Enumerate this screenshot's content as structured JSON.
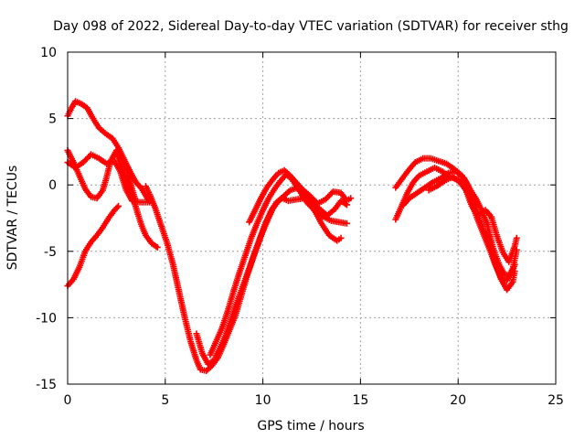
{
  "chart_data": {
    "type": "scatter",
    "title": "Day 098 of 2022, Sidereal Day-to-day VTEC variation (SDTVAR) for receiver sthg",
    "xlabel": "GPS time / hours",
    "ylabel": "SDTVAR / TECUs",
    "xlim": [
      0,
      25
    ],
    "ylim": [
      -15,
      10
    ],
    "xticks": [
      0,
      5,
      10,
      15,
      20,
      25
    ],
    "yticks": [
      -15,
      -10,
      -5,
      0,
      5,
      10
    ],
    "grid": true,
    "marker": "plus",
    "color": "#ff0000",
    "series": [
      {
        "name": "track-1",
        "points": [
          [
            0.0,
            5.2
          ],
          [
            0.2,
            5.8
          ],
          [
            0.4,
            6.3
          ],
          [
            0.7,
            6.1
          ],
          [
            1.0,
            5.8
          ],
          [
            1.3,
            5.0
          ],
          [
            1.6,
            4.3
          ],
          [
            2.0,
            3.8
          ],
          [
            2.3,
            3.5
          ],
          [
            2.6,
            2.8
          ],
          [
            2.9,
            1.9
          ],
          [
            3.2,
            1.0
          ],
          [
            3.5,
            0.2
          ],
          [
            3.8,
            -0.3
          ],
          [
            4.0,
            -0.8
          ],
          [
            4.2,
            -1.3
          ]
        ]
      },
      {
        "name": "track-2",
        "points": [
          [
            0.0,
            2.6
          ],
          [
            0.3,
            1.7
          ],
          [
            0.6,
            0.7
          ],
          [
            0.9,
            -0.3
          ],
          [
            1.2,
            -0.9
          ],
          [
            1.5,
            -1.0
          ],
          [
            1.8,
            -0.4
          ],
          [
            2.0,
            0.6
          ],
          [
            2.2,
            1.8
          ],
          [
            2.5,
            2.6
          ],
          [
            2.8,
            2.0
          ],
          [
            3.1,
            0.8
          ],
          [
            3.3,
            -0.3
          ],
          [
            3.5,
            -1.3
          ]
        ]
      },
      {
        "name": "track-3",
        "points": [
          [
            0.0,
            1.7
          ],
          [
            0.4,
            1.3
          ],
          [
            0.8,
            1.7
          ],
          [
            1.2,
            2.3
          ],
          [
            1.6,
            2.0
          ],
          [
            2.0,
            1.6
          ],
          [
            2.4,
            1.8
          ],
          [
            2.7,
            1.0
          ],
          [
            3.0,
            -0.4
          ],
          [
            3.3,
            -1.2
          ],
          [
            3.7,
            -1.3
          ],
          [
            4.1,
            -1.3
          ]
        ]
      },
      {
        "name": "track-4",
        "points": [
          [
            0.0,
            -7.6
          ],
          [
            0.3,
            -7.1
          ],
          [
            0.6,
            -6.2
          ],
          [
            0.9,
            -5.0
          ],
          [
            1.2,
            -4.3
          ],
          [
            1.5,
            -3.8
          ],
          [
            1.8,
            -3.2
          ],
          [
            2.1,
            -2.5
          ],
          [
            2.4,
            -1.9
          ],
          [
            2.6,
            -1.6
          ]
        ]
      },
      {
        "name": "track-5",
        "points": [
          [
            2.5,
            2.4
          ],
          [
            2.8,
            1.2
          ],
          [
            3.1,
            -0.1
          ],
          [
            3.4,
            -1.2
          ],
          [
            3.6,
            -2.2
          ],
          [
            3.8,
            -3.1
          ],
          [
            4.0,
            -3.8
          ],
          [
            4.3,
            -4.4
          ],
          [
            4.6,
            -4.7
          ]
        ]
      },
      {
        "name": "track-6",
        "points": [
          [
            4.0,
            -0.1
          ],
          [
            4.2,
            -0.7
          ],
          [
            4.5,
            -1.8
          ],
          [
            4.8,
            -3.1
          ],
          [
            5.1,
            -4.4
          ],
          [
            5.4,
            -6.0
          ],
          [
            5.7,
            -8.0
          ],
          [
            6.0,
            -10.0
          ],
          [
            6.3,
            -11.8
          ],
          [
            6.6,
            -13.2
          ],
          [
            6.8,
            -13.9
          ],
          [
            7.1,
            -14.0
          ],
          [
            7.4,
            -13.6
          ],
          [
            7.7,
            -13.0
          ],
          [
            8.0,
            -12.0
          ],
          [
            8.3,
            -10.9
          ],
          [
            8.6,
            -9.8
          ],
          [
            8.9,
            -8.3
          ],
          [
            9.2,
            -6.8
          ],
          [
            9.5,
            -5.5
          ],
          [
            9.8,
            -4.3
          ],
          [
            10.1,
            -3.0
          ],
          [
            10.4,
            -2.0
          ],
          [
            10.7,
            -1.3
          ],
          [
            11.0,
            -1.0
          ],
          [
            11.3,
            -1.2
          ],
          [
            11.7,
            -1.1
          ],
          [
            12.1,
            -1.0
          ],
          [
            12.5,
            -1.3
          ],
          [
            12.9,
            -1.8
          ],
          [
            13.3,
            -2.3
          ],
          [
            13.7,
            -1.8
          ],
          [
            14.0,
            -1.2
          ],
          [
            14.3,
            -1.5
          ]
        ]
      },
      {
        "name": "track-7",
        "points": [
          [
            6.6,
            -11.2
          ],
          [
            6.9,
            -12.7
          ],
          [
            7.2,
            -13.5
          ],
          [
            7.5,
            -13.2
          ],
          [
            7.8,
            -12.3
          ],
          [
            8.1,
            -11.3
          ],
          [
            8.4,
            -10.0
          ],
          [
            8.7,
            -8.7
          ],
          [
            9.0,
            -7.5
          ],
          [
            9.3,
            -6.3
          ],
          [
            9.6,
            -5.0
          ],
          [
            9.9,
            -3.8
          ],
          [
            10.2,
            -2.8
          ],
          [
            10.5,
            -1.8
          ],
          [
            10.8,
            -1.2
          ],
          [
            11.1,
            -0.8
          ],
          [
            11.4,
            -0.4
          ],
          [
            11.8,
            -0.2
          ],
          [
            12.2,
            -0.8
          ],
          [
            12.6,
            -1.8
          ],
          [
            13.0,
            -2.9
          ],
          [
            13.4,
            -3.8
          ],
          [
            13.8,
            -4.2
          ],
          [
            14.0,
            -4.0
          ]
        ]
      },
      {
        "name": "track-8",
        "points": [
          [
            7.3,
            -12.8
          ],
          [
            7.6,
            -11.8
          ],
          [
            7.9,
            -10.8
          ],
          [
            8.2,
            -9.5
          ],
          [
            8.5,
            -8.0
          ],
          [
            8.8,
            -6.6
          ],
          [
            9.1,
            -5.3
          ],
          [
            9.4,
            -4.0
          ],
          [
            9.7,
            -2.9
          ],
          [
            10.0,
            -1.9
          ],
          [
            10.3,
            -1.0
          ],
          [
            10.6,
            -0.3
          ],
          [
            10.9,
            0.3
          ],
          [
            11.2,
            0.8
          ],
          [
            11.5,
            0.4
          ],
          [
            11.9,
            -0.5
          ],
          [
            12.3,
            -1.4
          ],
          [
            12.7,
            -2.0
          ],
          [
            13.1,
            -2.4
          ],
          [
            13.5,
            -2.7
          ],
          [
            13.9,
            -2.8
          ],
          [
            14.3,
            -2.9
          ]
        ]
      },
      {
        "name": "track-9",
        "points": [
          [
            9.3,
            -2.8
          ],
          [
            9.6,
            -1.9
          ],
          [
            9.9,
            -1.0
          ],
          [
            10.2,
            -0.2
          ],
          [
            10.5,
            0.4
          ],
          [
            10.8,
            0.9
          ],
          [
            11.1,
            1.1
          ],
          [
            11.4,
            0.7
          ],
          [
            11.7,
            0.2
          ],
          [
            12.0,
            -0.3
          ],
          [
            12.4,
            -0.8
          ],
          [
            12.8,
            -1.4
          ],
          [
            13.2,
            -1.1
          ],
          [
            13.6,
            -0.5
          ],
          [
            14.0,
            -0.6
          ],
          [
            14.3,
            -1.2
          ],
          [
            14.5,
            -1.0
          ]
        ]
      },
      {
        "name": "track-10",
        "points": [
          [
            16.8,
            -0.2
          ],
          [
            17.1,
            0.4
          ],
          [
            17.4,
            1.0
          ],
          [
            17.8,
            1.7
          ],
          [
            18.2,
            2.0
          ],
          [
            18.6,
            2.0
          ],
          [
            19.0,
            1.8
          ],
          [
            19.4,
            1.6
          ],
          [
            19.8,
            1.2
          ],
          [
            20.2,
            0.7
          ],
          [
            20.5,
            0.0
          ],
          [
            20.7,
            -1.0
          ],
          [
            21.0,
            -2.2
          ],
          [
            21.3,
            -3.4
          ],
          [
            21.6,
            -4.5
          ],
          [
            21.9,
            -5.9
          ],
          [
            22.2,
            -7.1
          ],
          [
            22.5,
            -7.9
          ],
          [
            22.8,
            -7.3
          ],
          [
            22.9,
            -6.5
          ]
        ]
      },
      {
        "name": "track-11",
        "points": [
          [
            16.8,
            -2.6
          ],
          [
            17.1,
            -1.6
          ],
          [
            17.4,
            -0.6
          ],
          [
            17.7,
            0.2
          ],
          [
            18.0,
            0.7
          ],
          [
            18.4,
            1.0
          ],
          [
            18.8,
            1.3
          ],
          [
            19.2,
            1.0
          ],
          [
            19.6,
            0.6
          ],
          [
            20.0,
            0.4
          ],
          [
            20.4,
            -0.3
          ],
          [
            20.7,
            -1.4
          ],
          [
            21.0,
            -2.6
          ],
          [
            21.3,
            -3.7
          ],
          [
            21.6,
            -4.8
          ],
          [
            21.9,
            -6.0
          ],
          [
            22.2,
            -7.0
          ],
          [
            22.5,
            -7.2
          ],
          [
            22.8,
            -6.3
          ],
          [
            23.0,
            -4.9
          ]
        ]
      },
      {
        "name": "track-12",
        "points": [
          [
            17.2,
            -1.5
          ],
          [
            17.5,
            -1.0
          ],
          [
            17.9,
            -0.6
          ],
          [
            18.3,
            -0.2
          ],
          [
            18.7,
            0.2
          ],
          [
            19.1,
            0.5
          ],
          [
            19.5,
            0.9
          ],
          [
            19.9,
            1.0
          ],
          [
            20.3,
            0.5
          ],
          [
            20.6,
            -0.3
          ],
          [
            20.9,
            -1.0
          ],
          [
            21.2,
            -1.9
          ],
          [
            21.5,
            -3.0
          ],
          [
            21.8,
            -4.8
          ],
          [
            22.1,
            -6.0
          ],
          [
            22.4,
            -6.8
          ],
          [
            22.7,
            -6.8
          ],
          [
            22.9,
            -6.0
          ]
        ]
      },
      {
        "name": "track-13",
        "points": [
          [
            18.5,
            -0.4
          ],
          [
            18.9,
            -0.1
          ],
          [
            19.3,
            0.3
          ],
          [
            19.7,
            0.6
          ],
          [
            20.1,
            0.2
          ],
          [
            20.4,
            -0.4
          ],
          [
            20.7,
            -1.6
          ],
          [
            21.0,
            -2.3
          ],
          [
            21.4,
            -1.9
          ],
          [
            21.7,
            -2.4
          ],
          [
            22.0,
            -3.9
          ],
          [
            22.3,
            -5.1
          ],
          [
            22.6,
            -5.8
          ],
          [
            22.9,
            -4.6
          ],
          [
            23.0,
            -4.0
          ]
        ]
      }
    ]
  }
}
